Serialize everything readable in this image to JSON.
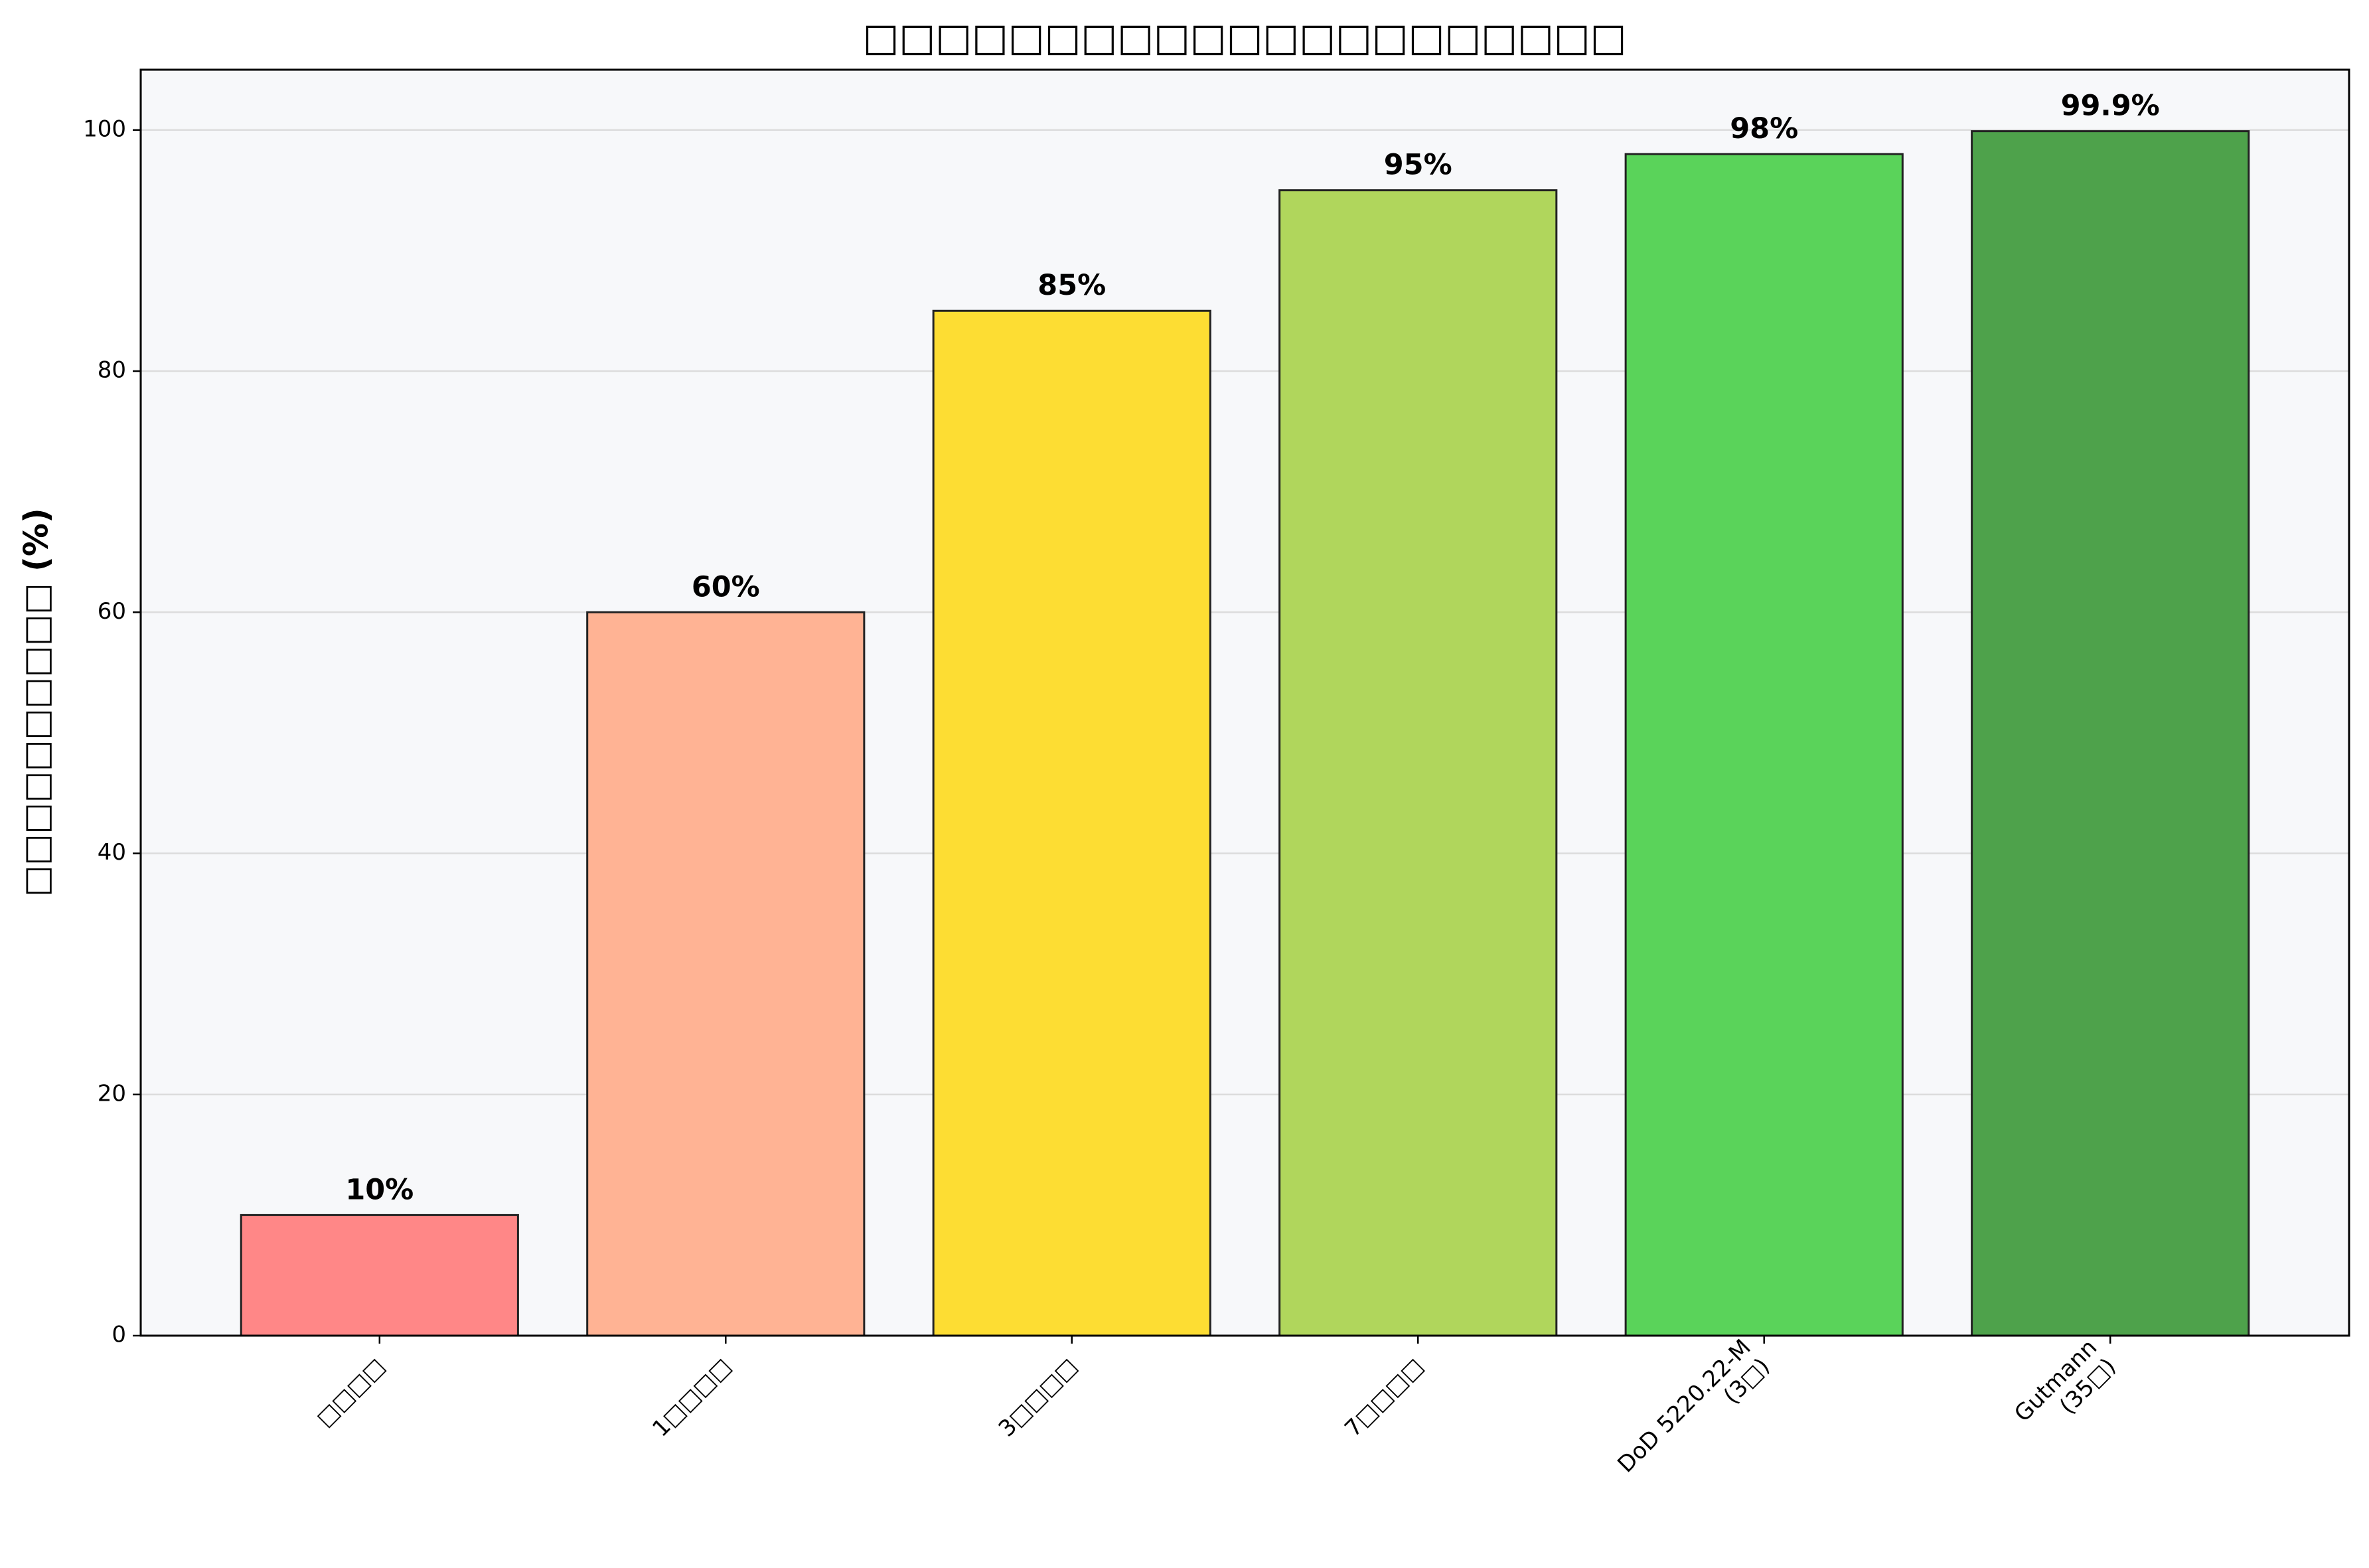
{
  "chart_data": {
    "type": "bar",
    "title": "□□□□□□□□□□□□□□□□□□□□□",
    "y_label": "□□□□□□□□□□ (%)",
    "categories": [
      "□□□□",
      "1□□□□",
      "3□□□□",
      "7□□□□",
      "DoD 5220.22-M\n(3□)",
      "Gutmann\n(35□)"
    ],
    "values": [
      10,
      60,
      85,
      95,
      98,
      99.9
    ],
    "value_labels": [
      "10%",
      "60%",
      "85%",
      "95%",
      "98%",
      "99.9%"
    ],
    "colors": [
      "#ff8787",
      "#ffb394",
      "#fddd33",
      "#b0d65c",
      "#5ad35a",
      "#4ea24b"
    ],
    "ylim": [
      0,
      105
    ],
    "yticks": [
      0,
      20,
      40,
      60,
      80,
      100
    ],
    "grid": true
  }
}
